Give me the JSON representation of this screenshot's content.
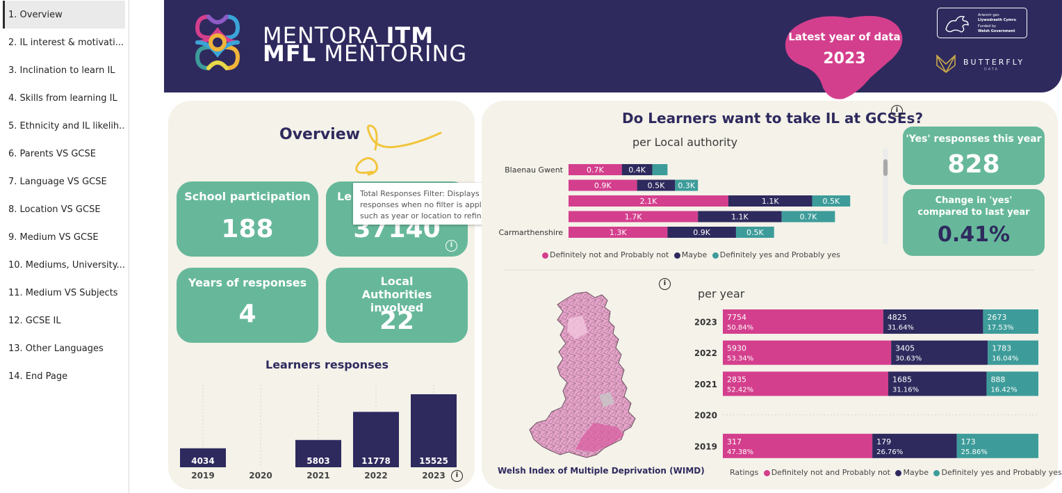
{
  "sidebar": {
    "items": [
      {
        "label": "1. Overview",
        "active": true
      },
      {
        "label": "2. IL interest & motivati..."
      },
      {
        "label": "3. Inclination to learn IL"
      },
      {
        "label": "4. Skills from learning IL"
      },
      {
        "label": "5. Ethnicity and IL likelih..."
      },
      {
        "label": "6. Parents VS GCSE"
      },
      {
        "label": "7. Language VS GCSE"
      },
      {
        "label": "8. Location VS GCSE"
      },
      {
        "label": "9. Medium VS GCSE"
      },
      {
        "label": "10. Mediums, University..."
      },
      {
        "label": "11. Medium VS Subjects"
      },
      {
        "label": "12. GCSE IL"
      },
      {
        "label": "13. Other Languages"
      },
      {
        "label": "14. End Page"
      }
    ]
  },
  "header": {
    "brand_line1_light": "MENTORA ",
    "brand_line1_bold": "ITM",
    "brand_line2_bold": "MFL",
    "brand_line2_light": " MENTORING",
    "latest_label": "Latest year of data",
    "latest_year": "2023",
    "welsh_gov_lines": [
      "Ariennir gan",
      "Llywodraeth Cymru",
      "Funded by",
      "Welsh Government"
    ],
    "butterfly_text": "BUTTERFLY",
    "butterfly_sub": "DATA",
    "accent_pink": "#d43f8d",
    "navy": "#2e2a5e"
  },
  "overview": {
    "title": "Overview",
    "kpis": {
      "school_participation": {
        "label": "School participation",
        "value": "188"
      },
      "learners": {
        "label": "Le",
        "value": "37140"
      },
      "years": {
        "label": "Years of responses",
        "value": "4"
      },
      "local_authorities": {
        "label": "Local Authorities involved",
        "value": "22"
      }
    },
    "tooltip": "Total Responses Filter: Displays all student responses when no filter is applied. Use filters such as year or location to refine results.",
    "learners_title": "Learners responses"
  },
  "gcse": {
    "title": "Do Learners want to take IL at GCSEs?",
    "per_la_title": "per Local authority",
    "per_year_title": "per year",
    "legend": [
      "Definitely not and Probably not",
      "Maybe",
      "Definitely yes and Probably yes"
    ],
    "ratings_label": "Ratings",
    "map_caption": "Welsh Index of Multiple Deprivation (WIMD)",
    "yes_kpi": {
      "label": "'Yes' responses this year",
      "value": "828"
    },
    "change_kpi": {
      "label": "Change in 'yes' compared to last year",
      "value": "0.41%"
    }
  },
  "chart_data": [
    {
      "type": "bar",
      "title": "Learners responses",
      "categories": [
        "2019",
        "2020",
        "2021",
        "2022",
        "2023"
      ],
      "values": [
        4034,
        0,
        5803,
        11778,
        15525
      ],
      "data_labels": [
        "4034",
        "",
        "5803",
        "11778",
        "15525"
      ],
      "ylim": [
        0,
        17000
      ],
      "color": "#2e2a5e"
    },
    {
      "type": "bar",
      "orientation": "horizontal",
      "stacked": true,
      "title": "per Local authority",
      "categories": [
        "Blaenau Gwent",
        "",
        "",
        "",
        "Carmarthenshire"
      ],
      "series": [
        {
          "name": "Definitely not and Probably not",
          "values": [
            700,
            900,
            2100,
            1700,
            1300
          ],
          "labels": [
            "0.7K",
            "0.9K",
            "2.1K",
            "1.7K",
            "1.3K"
          ],
          "color": "#d43f8d"
        },
        {
          "name": "Maybe",
          "values": [
            400,
            500,
            1100,
            1100,
            900
          ],
          "labels": [
            "0.4K",
            "0.5K",
            "1.1K",
            "1.1K",
            "0.9K"
          ],
          "color": "#2e2a5e"
        },
        {
          "name": "Definitely yes and Probably yes",
          "values": [
            200,
            300,
            500,
            700,
            500
          ],
          "labels": [
            "",
            "0.3K",
            "0.5K",
            "0.7K",
            "0.5K"
          ],
          "color": "#3d9c9a"
        }
      ]
    },
    {
      "type": "bar",
      "orientation": "horizontal",
      "stacked": true,
      "percent": true,
      "title": "per year",
      "categories": [
        "2023",
        "2022",
        "2021",
        "2020",
        "2019"
      ],
      "series": [
        {
          "name": "Definitely not and Probably not",
          "values": [
            7754,
            5930,
            2835,
            0,
            317
          ],
          "percents": [
            "50.84%",
            "53.34%",
            "52.42%",
            "",
            "47.38%"
          ],
          "color": "#d43f8d"
        },
        {
          "name": "Maybe",
          "values": [
            4825,
            3405,
            1685,
            0,
            179
          ],
          "percents": [
            "31.64%",
            "30.63%",
            "31.16%",
            "",
            "26.76%"
          ],
          "color": "#2e2a5e"
        },
        {
          "name": "Definitely yes and Probably yes",
          "values": [
            2673,
            1783,
            888,
            0,
            173
          ],
          "percents": [
            "17.53%",
            "16.04%",
            "16.42%",
            "",
            "25.86%"
          ],
          "color": "#3d9c9a"
        }
      ]
    }
  ]
}
